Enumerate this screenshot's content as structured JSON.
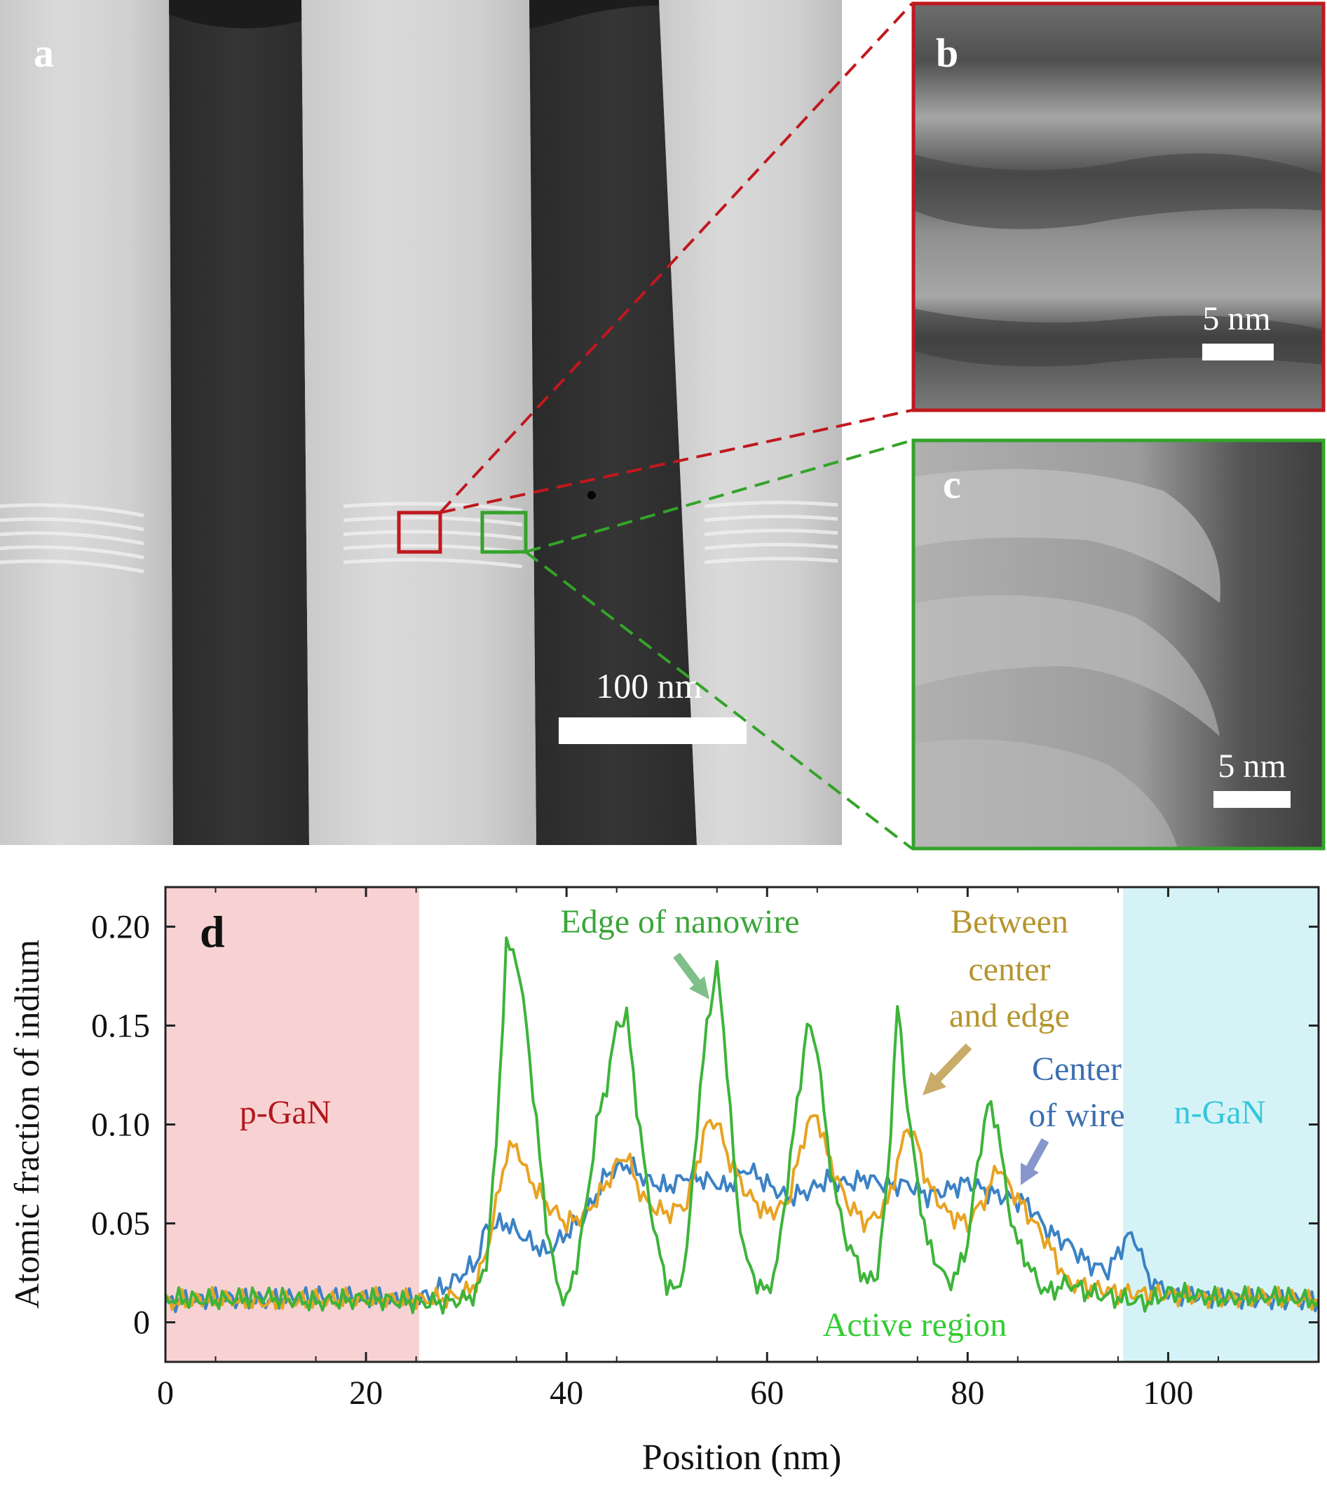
{
  "panels": {
    "a": {
      "letter": "a",
      "scalebar_label": "100 nm"
    },
    "b": {
      "letter": "b",
      "scalebar_label": "5 nm",
      "frame_color": "#c0181e"
    },
    "c": {
      "letter": "c",
      "scalebar_label": "5 nm",
      "frame_color": "#34a32a"
    },
    "d": {
      "letter": "d"
    }
  },
  "chart_data": {
    "type": "line",
    "xlabel": "Position (nm)",
    "ylabel": "Atomic fraction of indium",
    "xlim": [
      0,
      115
    ],
    "ylim": [
      -0.02,
      0.22
    ],
    "xticks": [
      0,
      20,
      40,
      60,
      80,
      100
    ],
    "yticks": [
      0,
      0.05,
      0.1,
      0.15,
      0.2
    ],
    "ytick_labels": [
      "0",
      "0.05",
      "0.10",
      "0.15",
      "0.20"
    ],
    "grid": false,
    "regions": [
      {
        "label": "p-GaN",
        "x": [
          0,
          25.3
        ],
        "color": "#f8d2d3",
        "label_color": "#b3171c"
      },
      {
        "label": "n-GaN",
        "x": [
          95.5,
          115
        ],
        "color": "#d5f3f7",
        "label_color": "#34c6dc"
      }
    ],
    "annotations": [
      {
        "text": "Edge of nanowire",
        "color": "#3aa63a"
      },
      {
        "text": "Between",
        "color": "#b5952e"
      },
      {
        "text": "center",
        "color": "#b5952e"
      },
      {
        "text": "and edge",
        "color": "#b5952e"
      },
      {
        "text": "Center",
        "color": "#3b6fb0"
      },
      {
        "text": "of wire",
        "color": "#3b6fb0"
      },
      {
        "text": "Active region",
        "color": "#33cc33"
      }
    ],
    "series": [
      {
        "color": "#3c82c4",
        "x": [
          0,
          5,
          10,
          15,
          20,
          25,
          28,
          31,
          32,
          34,
          36,
          38,
          40,
          42,
          44,
          46,
          48,
          50,
          52,
          54,
          56,
          58,
          60,
          62,
          64,
          66,
          68,
          70,
          72,
          74,
          76,
          78,
          80,
          82,
          84,
          86,
          88,
          90,
          92,
          94,
          96,
          97,
          98,
          100,
          105,
          110,
          115
        ],
        "y": [
          0.01,
          0.012,
          0.011,
          0.013,
          0.012,
          0.011,
          0.018,
          0.03,
          0.048,
          0.05,
          0.042,
          0.035,
          0.045,
          0.055,
          0.075,
          0.08,
          0.072,
          0.068,
          0.074,
          0.072,
          0.068,
          0.078,
          0.07,
          0.063,
          0.066,
          0.072,
          0.07,
          0.073,
          0.069,
          0.07,
          0.064,
          0.067,
          0.071,
          0.066,
          0.063,
          0.06,
          0.046,
          0.04,
          0.03,
          0.026,
          0.044,
          0.04,
          0.022,
          0.015,
          0.013,
          0.012,
          0.011
        ]
      },
      {
        "color": "#e8a322",
        "x": [
          0,
          5,
          10,
          15,
          20,
          25,
          28,
          30,
          31,
          32,
          33,
          34,
          35,
          36,
          38,
          40,
          42,
          44,
          45,
          46,
          47,
          48,
          50,
          52,
          53,
          54,
          55,
          56,
          58,
          60,
          62,
          63,
          64,
          65,
          66,
          68,
          70,
          72,
          73,
          74,
          75,
          76,
          78,
          80,
          82,
          83,
          84,
          86,
          88,
          90,
          95,
          100,
          105,
          110,
          115
        ],
        "y": [
          0.01,
          0.012,
          0.01,
          0.011,
          0.012,
          0.011,
          0.012,
          0.015,
          0.02,
          0.035,
          0.06,
          0.085,
          0.09,
          0.075,
          0.06,
          0.05,
          0.055,
          0.07,
          0.08,
          0.085,
          0.07,
          0.06,
          0.055,
          0.06,
          0.08,
          0.1,
          0.102,
          0.085,
          0.065,
          0.055,
          0.06,
          0.08,
          0.1,
          0.105,
          0.085,
          0.06,
          0.05,
          0.06,
          0.08,
          0.1,
          0.09,
          0.07,
          0.055,
          0.05,
          0.065,
          0.08,
          0.07,
          0.055,
          0.04,
          0.02,
          0.015,
          0.014,
          0.012,
          0.013,
          0.011
        ]
      },
      {
        "color": "#3db43a",
        "x": [
          0,
          5,
          10,
          15,
          20,
          25,
          28,
          30,
          31,
          32,
          33,
          34,
          35,
          36,
          37,
          38,
          39,
          40,
          41,
          42,
          43,
          44,
          45,
          46,
          47,
          48,
          49,
          50,
          51,
          52,
          53,
          54,
          55,
          56,
          57,
          58,
          59,
          60,
          61,
          62,
          63,
          64,
          65,
          66,
          67,
          68,
          69,
          70,
          71,
          72,
          73,
          74,
          75,
          76,
          77,
          78,
          79,
          80,
          81,
          82,
          83,
          84,
          85,
          86,
          87,
          88,
          90,
          92,
          95,
          98,
          100,
          105,
          110,
          115
        ],
        "y": [
          0.012,
          0.011,
          0.013,
          0.01,
          0.012,
          0.01,
          0.01,
          0.012,
          0.015,
          0.03,
          0.09,
          0.19,
          0.185,
          0.15,
          0.1,
          0.05,
          0.02,
          0.01,
          0.03,
          0.06,
          0.1,
          0.12,
          0.15,
          0.155,
          0.11,
          0.07,
          0.04,
          0.02,
          0.015,
          0.035,
          0.1,
          0.15,
          0.18,
          0.13,
          0.06,
          0.03,
          0.02,
          0.015,
          0.03,
          0.07,
          0.11,
          0.15,
          0.14,
          0.09,
          0.06,
          0.04,
          0.03,
          0.02,
          0.025,
          0.07,
          0.16,
          0.11,
          0.07,
          0.04,
          0.03,
          0.02,
          0.025,
          0.04,
          0.08,
          0.11,
          0.1,
          0.06,
          0.04,
          0.03,
          0.02,
          0.015,
          0.02,
          0.015,
          0.012,
          0.01,
          0.015,
          0.012,
          0.013,
          0.011
        ]
      }
    ]
  }
}
